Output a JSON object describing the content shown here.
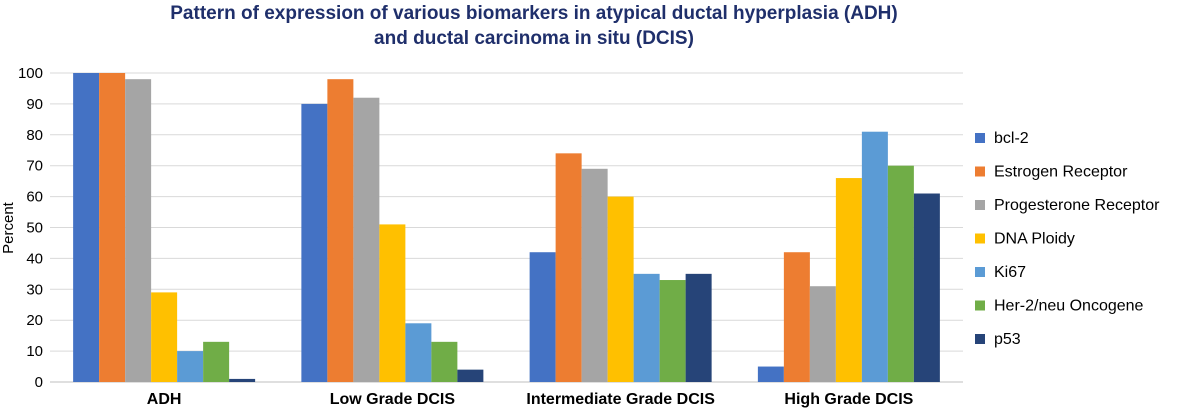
{
  "chart_data": {
    "type": "bar",
    "title_lines": [
      "Pattern of expression of various biomarkers in atypical ductal hyperplasia (ADH)",
      "and ductal carcinoma in situ (DCIS)"
    ],
    "xlabel": "",
    "ylabel": "Percent",
    "ylim": [
      0,
      100
    ],
    "yticks": [
      0,
      10,
      20,
      30,
      40,
      50,
      60,
      70,
      80,
      90,
      100
    ],
    "grid": true,
    "legend_position": "right",
    "categories": [
      "ADH",
      "Low Grade DCIS",
      "Intermediate Grade DCIS",
      "High Grade DCIS"
    ],
    "series": [
      {
        "name": "bcl-2",
        "color": "#4472c4",
        "values": [
          100,
          90,
          42,
          5
        ]
      },
      {
        "name": "Estrogen Receptor",
        "color": "#ed7d31",
        "values": [
          100,
          98,
          74,
          42
        ]
      },
      {
        "name": "Progesterone Receptor",
        "color": "#a5a5a5",
        "values": [
          98,
          92,
          69,
          31
        ]
      },
      {
        "name": "DNA Ploidy",
        "color": "#ffc000",
        "values": [
          29,
          51,
          60,
          66
        ]
      },
      {
        "name": "Ki67",
        "color": "#5b9bd5",
        "values": [
          10,
          19,
          35,
          81
        ]
      },
      {
        "name": "Her-2/neu Oncogene",
        "color": "#70ad47",
        "values": [
          13,
          13,
          33,
          70
        ]
      },
      {
        "name": "p53",
        "color": "#264478",
        "values": [
          1,
          4,
          35,
          61
        ]
      }
    ]
  }
}
